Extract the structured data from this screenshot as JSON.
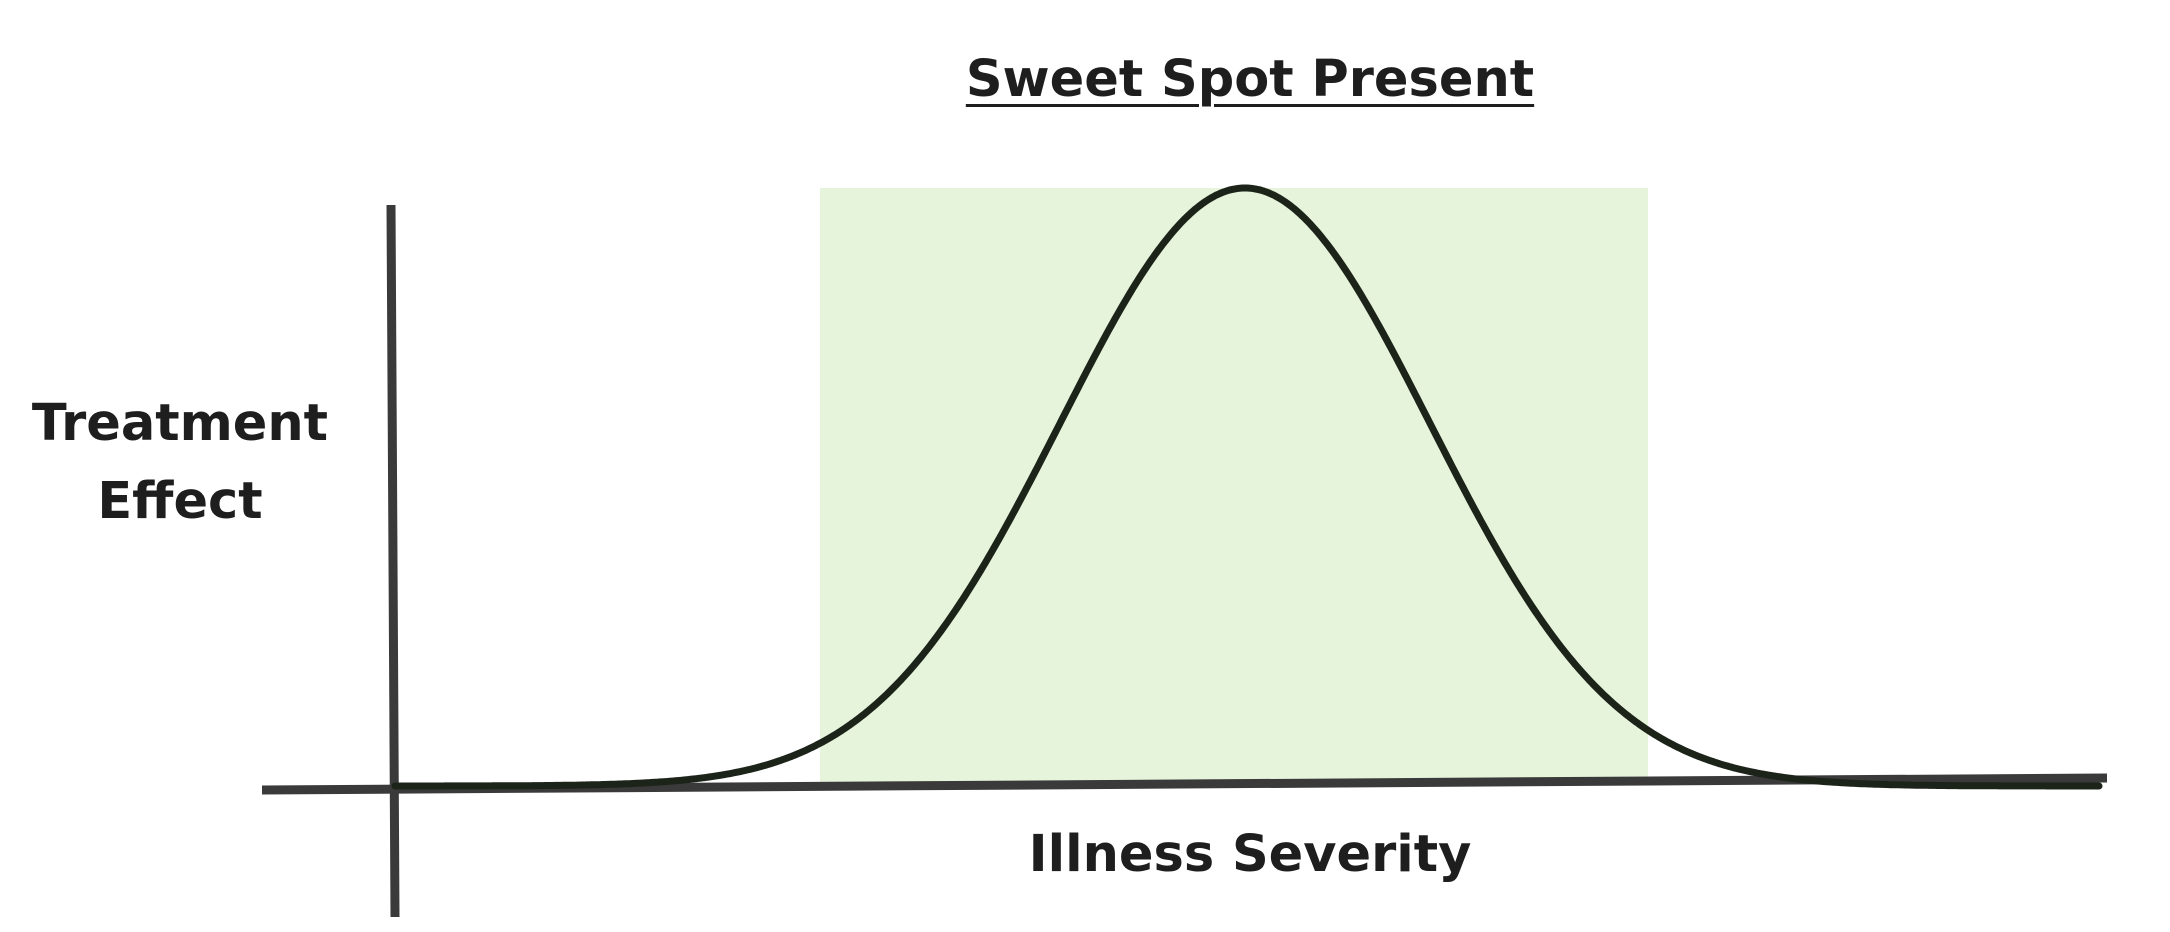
{
  "title": "Sweet Spot Present",
  "y_axis_label": [
    "Treatment",
    "Effect"
  ],
  "x_axis_label": "Illness Severity",
  "colors": {
    "highlight": "#e7f4dc",
    "curve": "#1c2419",
    "axis": "#3a3a3a",
    "text": "#1e1e1e"
  },
  "diagram": {
    "curve_shape": "bell-curve",
    "highlight_region": "sweet-spot"
  }
}
